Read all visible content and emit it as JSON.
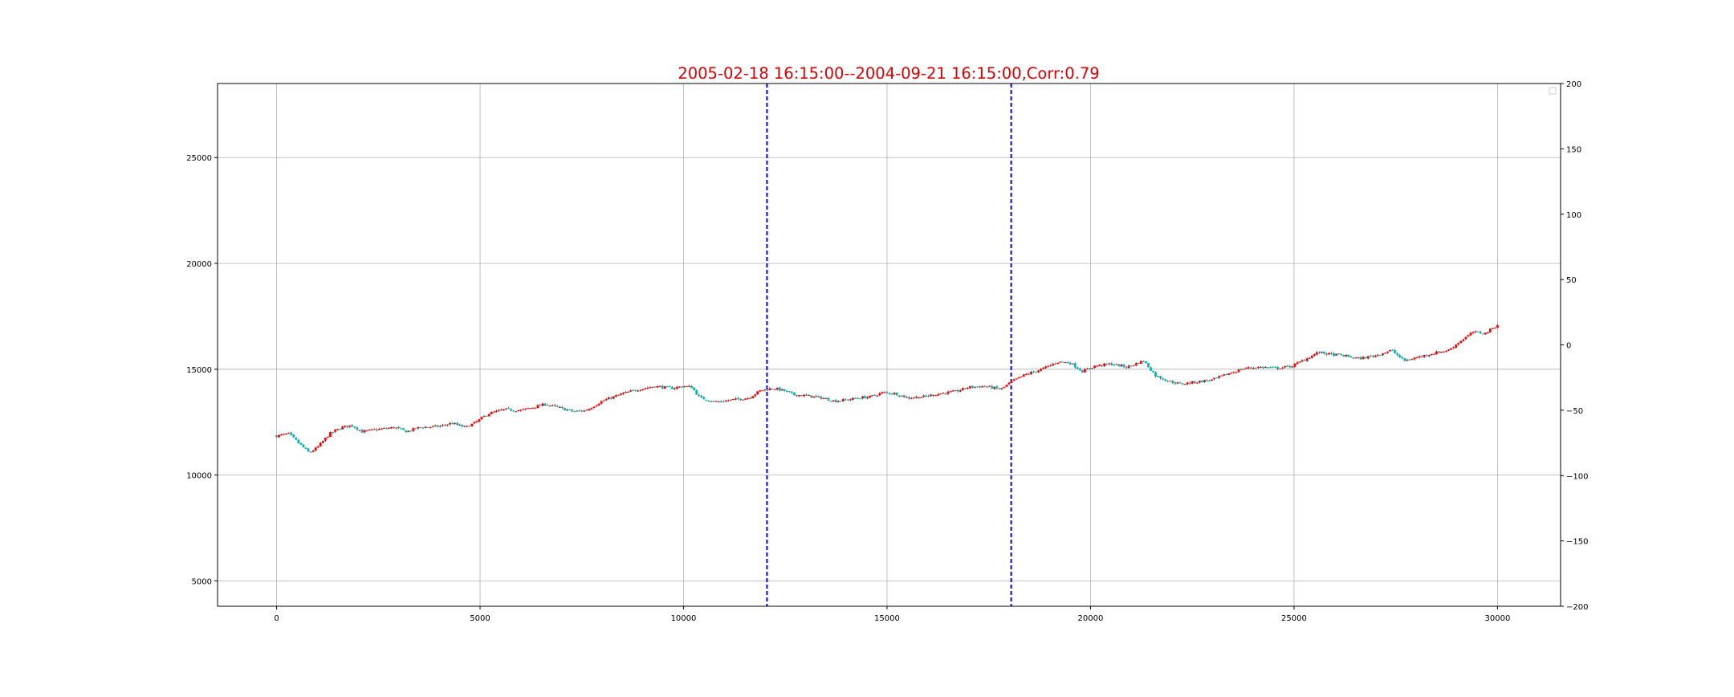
{
  "chart_data": {
    "type": "candlestick",
    "title": "2005-02-18 16:15:00--2004-09-21 16:15:00,Corr:0.79",
    "title_color": "#dd0000",
    "xlabel": "",
    "ylabel": "",
    "xlim": [
      -1450,
      31550
    ],
    "ylim_left": [
      3800,
      28500
    ],
    "ylim_right": [
      -200,
      200
    ],
    "x_ticks": [
      0,
      5000,
      10000,
      15000,
      20000,
      25000,
      30000
    ],
    "x_tick_labels": [
      "0",
      "5000",
      "10000",
      "15000",
      "20000",
      "25000",
      "30000"
    ],
    "y_left_ticks": [
      5000,
      10000,
      15000,
      20000,
      25000
    ],
    "y_left_tick_labels": [
      "5000",
      "10000",
      "15000",
      "20000",
      "25000"
    ],
    "y_right_ticks": [
      -200,
      -150,
      -100,
      -50,
      0,
      50,
      100,
      150,
      200
    ],
    "y_right_tick_labels": [
      "−200",
      "−150",
      "−100",
      "−50",
      "0",
      "50",
      "100",
      "150",
      "200"
    ],
    "grid": true,
    "legend": "top-right (empty)",
    "up_color": "#ff0000",
    "down_color": "#00b8b8",
    "wick_color": "#000000",
    "vline_color": "#0000ff",
    "vlines": [
      12050,
      18050
    ],
    "close_path": [
      [
        0,
        11850
      ],
      [
        300,
        11950
      ],
      [
        550,
        11500
      ],
      [
        800,
        11050
      ],
      [
        1000,
        11300
      ],
      [
        1300,
        11950
      ],
      [
        1600,
        12250
      ],
      [
        1850,
        12350
      ],
      [
        2100,
        12050
      ],
      [
        2450,
        12150
      ],
      [
        2900,
        12250
      ],
      [
        3200,
        12050
      ],
      [
        3500,
        12250
      ],
      [
        4000,
        12300
      ],
      [
        4300,
        12450
      ],
      [
        4650,
        12250
      ],
      [
        4900,
        12500
      ],
      [
        5200,
        12900
      ],
      [
        5600,
        13100
      ],
      [
        6000,
        13050
      ],
      [
        6300,
        13200
      ],
      [
        6600,
        13350
      ],
      [
        7000,
        13150
      ],
      [
        7300,
        13000
      ],
      [
        7600,
        13050
      ],
      [
        8000,
        13500
      ],
      [
        8500,
        13850
      ],
      [
        8900,
        14050
      ],
      [
        9300,
        14200
      ],
      [
        9700,
        14100
      ],
      [
        10000,
        14200
      ],
      [
        10200,
        14150
      ],
      [
        10400,
        13650
      ],
      [
        10800,
        13450
      ],
      [
        11200,
        13550
      ],
      [
        11600,
        13650
      ],
      [
        11900,
        14000
      ],
      [
        12200,
        14100
      ],
      [
        12450,
        14000
      ],
      [
        12700,
        13800
      ],
      [
        13000,
        13750
      ],
      [
        13400,
        13650
      ],
      [
        13700,
        13500
      ],
      [
        14000,
        13550
      ],
      [
        14300,
        13650
      ],
      [
        14600,
        13700
      ],
      [
        14900,
        13900
      ],
      [
        15200,
        13850
      ],
      [
        15500,
        13650
      ],
      [
        15900,
        13700
      ],
      [
        16300,
        13850
      ],
      [
        16700,
        13950
      ],
      [
        17000,
        14150
      ],
      [
        17400,
        14200
      ],
      [
        17800,
        14050
      ],
      [
        18050,
        14400
      ],
      [
        18400,
        14750
      ],
      [
        18800,
        15000
      ],
      [
        19200,
        15350
      ],
      [
        19500,
        15300
      ],
      [
        19800,
        14900
      ],
      [
        20100,
        15150
      ],
      [
        20500,
        15250
      ],
      [
        20900,
        15100
      ],
      [
        21300,
        15400
      ],
      [
        21600,
        14700
      ],
      [
        21900,
        14450
      ],
      [
        22200,
        14300
      ],
      [
        22600,
        14400
      ],
      [
        23000,
        14500
      ],
      [
        23400,
        14800
      ],
      [
        23800,
        15050
      ],
      [
        24200,
        15100
      ],
      [
        24600,
        15050
      ],
      [
        24950,
        15150
      ],
      [
        25300,
        15500
      ],
      [
        25600,
        15800
      ],
      [
        25900,
        15700
      ],
      [
        26200,
        15650
      ],
      [
        26600,
        15500
      ],
      [
        27000,
        15650
      ],
      [
        27400,
        15900
      ],
      [
        27700,
        15400
      ],
      [
        28000,
        15550
      ],
      [
        28400,
        15750
      ],
      [
        28800,
        15900
      ],
      [
        29100,
        16350
      ],
      [
        29400,
        16750
      ],
      [
        29700,
        16700
      ],
      [
        30000,
        17100
      ]
    ]
  }
}
